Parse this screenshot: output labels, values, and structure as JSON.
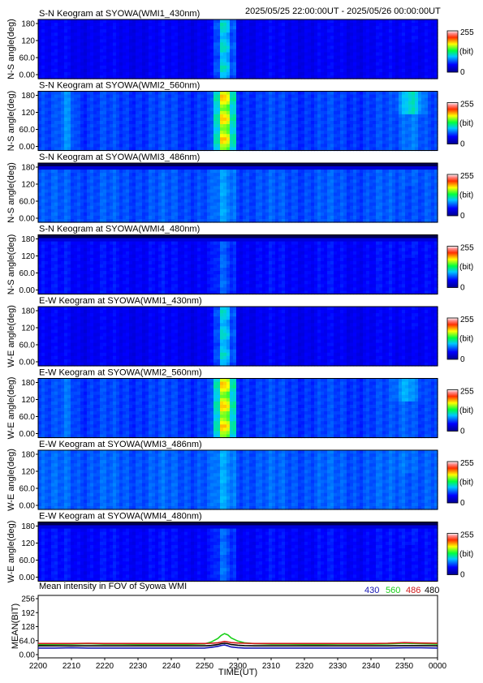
{
  "header": {
    "time_range": "2025/05/25 22:00:00UT - 2025/05/26 00:00:00UT"
  },
  "colors": {
    "c430": "#1414b4",
    "c560": "#18d018",
    "c486": "#d01818",
    "c480": "#000000"
  },
  "panels": [
    {
      "title": "S-N Keogram at SYOWA(WMI1_430nm)",
      "ylabel": "N-S angle(deg)",
      "yticks": [
        "180",
        "120",
        "60.0",
        "0.00"
      ],
      "cb_top": "255",
      "cb_mid": "(bit)",
      "cb_bot": "0",
      "base": 0.16,
      "spike": 0.25,
      "right": 0.04,
      "rightPos": 0.93,
      "topBand": 0.0
    },
    {
      "title": "S-N Keogram at SYOWA(WMI2_560nm)",
      "ylabel": "N-S angle(deg)",
      "yticks": [
        "180",
        "120",
        "60.0",
        "0.00"
      ],
      "cb_top": "255",
      "cb_mid": "(bit)",
      "cb_bot": "0",
      "base": 0.24,
      "spike": 0.46,
      "right": 0.22,
      "rightPos": 0.93,
      "topBand": 0.0
    },
    {
      "title": "S-N Keogram at SYOWA(WMI3_486nm)",
      "ylabel": "N-S angle(deg)",
      "yticks": [
        "180",
        "120",
        "60.0",
        "0.00"
      ],
      "cb_top": "255",
      "cb_mid": "(bit)",
      "cb_bot": "0",
      "base": 0.26,
      "spike": 0.07,
      "right": 0.03,
      "rightPos": 0.93,
      "topBand": 0.06
    },
    {
      "title": "S-N Keogram at SYOWA(WMI4_480nm)",
      "ylabel": "N-S angle(deg)",
      "yticks": [
        "180",
        "120",
        "60.0",
        "0.00"
      ],
      "cb_top": "255",
      "cb_mid": "(bit)",
      "cb_bot": "0",
      "base": 0.18,
      "spike": 0.09,
      "right": 0.04,
      "rightPos": 0.93,
      "topBand": 0.06
    },
    {
      "title": "E-W Keogram at SYOWA(WMI1_430nm)",
      "ylabel": "W-E angle(deg)",
      "yticks": [
        "180",
        "120",
        "60.0",
        "0.00"
      ],
      "cb_top": "255",
      "cb_mid": "(bit)",
      "cb_bot": "0",
      "base": 0.16,
      "spike": 0.24,
      "right": 0.04,
      "rightPos": 0.93,
      "topBand": 0.0
    },
    {
      "title": "E-W Keogram at SYOWA(WMI2_560nm)",
      "ylabel": "W-E angle(deg)",
      "yticks": [
        "180",
        "120",
        "60.0",
        "0.00"
      ],
      "cb_top": "255",
      "cb_mid": "(bit)",
      "cb_bot": "0",
      "base": 0.24,
      "spike": 0.46,
      "right": 0.14,
      "rightPos": 0.92,
      "topBand": 0.0
    },
    {
      "title": "E-W Keogram at SYOWA(WMI3_486nm)",
      "ylabel": "W-E angle(deg)",
      "yticks": [
        "180",
        "120",
        "60.0",
        "0.00"
      ],
      "cb_top": "255",
      "cb_mid": "(bit)",
      "cb_bot": "0",
      "base": 0.27,
      "spike": 0.07,
      "right": 0.04,
      "rightPos": 0.92,
      "topBand": 0.0
    },
    {
      "title": "E-W Keogram at SYOWA(WMI4_480nm)",
      "ylabel": "W-E angle(deg)",
      "yticks": [
        "180",
        "120",
        "60.0",
        "0.00"
      ],
      "cb_top": "255",
      "cb_mid": "(bit)",
      "cb_bot": "0",
      "base": 0.18,
      "spike": 0.1,
      "right": 0.04,
      "rightPos": 0.93,
      "topBand": 0.09
    }
  ],
  "chart_data": {
    "type": "line",
    "title": "Mean intensity in FOV of Syowa WMI",
    "ylabel": "MEAN(BIT)",
    "xlabel": "TIME(UT)",
    "yticks": [
      "256",
      "192",
      "128",
      "64.0",
      "0.00"
    ],
    "ylim": [
      0,
      256
    ],
    "xticks": [
      "2200",
      "2210",
      "2220",
      "2230",
      "2240",
      "2250",
      "2300",
      "2310",
      "2320",
      "2330",
      "2340",
      "2350",
      "0000"
    ],
    "x": [
      0,
      5,
      10,
      15,
      20,
      25,
      30,
      35,
      40,
      45,
      50,
      52,
      54,
      55,
      56,
      57,
      58,
      60,
      62,
      65,
      70,
      75,
      80,
      85,
      90,
      95,
      100,
      105,
      110,
      115,
      120
    ],
    "series": [
      {
        "name": "430",
        "color": "#1414b4",
        "values": [
          30,
          30,
          31,
          30,
          30,
          30,
          30,
          30,
          30,
          30,
          30,
          33,
          38,
          42,
          44,
          40,
          35,
          32,
          30,
          30,
          30,
          30,
          30,
          30,
          30,
          30,
          30,
          30,
          31,
          31,
          30
        ]
      },
      {
        "name": "560",
        "color": "#18d018",
        "values": [
          46,
          47,
          48,
          50,
          48,
          48,
          47,
          47,
          47,
          47,
          49,
          58,
          74,
          88,
          96,
          90,
          76,
          62,
          54,
          50,
          48,
          48,
          47,
          47,
          48,
          48,
          48,
          49,
          52,
          50,
          48
        ]
      },
      {
        "name": "486",
        "color": "#d01818",
        "values": [
          51,
          51,
          51,
          52,
          51,
          51,
          51,
          51,
          51,
          51,
          51,
          52,
          54,
          57,
          60,
          58,
          55,
          53,
          52,
          51,
          51,
          51,
          51,
          51,
          51,
          51,
          51,
          52,
          55,
          53,
          52
        ]
      },
      {
        "name": "480",
        "color": "#000000",
        "values": [
          40,
          40,
          40,
          40,
          40,
          40,
          40,
          40,
          40,
          40,
          40,
          42,
          46,
          50,
          52,
          50,
          46,
          43,
          41,
          40,
          40,
          40,
          40,
          40,
          40,
          40,
          40,
          40,
          41,
          41,
          40
        ]
      }
    ]
  }
}
